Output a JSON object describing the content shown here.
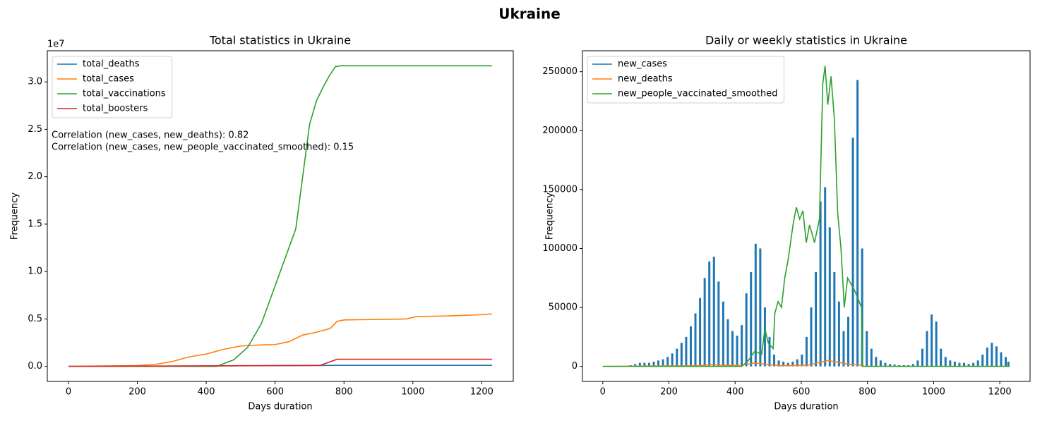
{
  "figure_title": "Ukraine",
  "chart_data": [
    {
      "type": "line",
      "title": "Total statistics in Ukraine",
      "xlabel": "Days duration",
      "ylabel": "Frequency",
      "y_offset_label": "1e7",
      "legend": "upper left",
      "annotations": [
        "Correlation (new_cases, new_deaths): 0.82",
        "Correlation (new_cases, new_people_vaccinated_smoothed): 0.15"
      ],
      "xlim": [
        -61.5,
        1291.5
      ],
      "xticks": [
        0,
        200,
        400,
        600,
        800,
        1000,
        1200
      ],
      "ylim": [
        -1585000,
        33285000
      ],
      "yticks": [
        {
          "value": 0,
          "label": "0.0"
        },
        {
          "value": 5000000,
          "label": "0.5"
        },
        {
          "value": 10000000,
          "label": "1.0"
        },
        {
          "value": 15000000,
          "label": "1.5"
        },
        {
          "value": 20000000,
          "label": "2.0"
        },
        {
          "value": 25000000,
          "label": "2.5"
        },
        {
          "value": 30000000,
          "label": "3.0"
        }
      ],
      "series": [
        {
          "name": "total_deaths",
          "color": "#1f77b4",
          "x": [
            0,
            300,
            500,
            700,
            780,
            1230
          ],
          "values": [
            0,
            20000,
            60000,
            90000,
            110000,
            110000
          ]
        },
        {
          "name": "total_cases",
          "color": "#ff7f0e",
          "x": [
            0,
            200,
            250,
            300,
            350,
            400,
            450,
            500,
            550,
            600,
            640,
            680,
            720,
            760,
            780,
            800,
            900,
            980,
            1010,
            1100,
            1200,
            1230
          ],
          "values": [
            0,
            80000,
            200000,
            500000,
            1000000,
            1300000,
            1800000,
            2150000,
            2250000,
            2300000,
            2600000,
            3300000,
            3600000,
            4000000,
            4750000,
            4900000,
            4950000,
            5000000,
            5250000,
            5320000,
            5450000,
            5530000
          ]
        },
        {
          "name": "total_vaccinations",
          "color": "#2ca02c",
          "x": [
            0,
            430,
            480,
            520,
            560,
            600,
            640,
            660,
            680,
            700,
            720,
            740,
            760,
            775,
            790,
            1230
          ],
          "values": [
            0,
            0,
            700000,
            2000000,
            4500000,
            8500000,
            12500000,
            14500000,
            20000000,
            25500000,
            28000000,
            29500000,
            30800000,
            31600000,
            31700000,
            31700000
          ]
        },
        {
          "name": "total_boosters",
          "color": "#d62728",
          "x": [
            0,
            730,
            780,
            1230
          ],
          "values": [
            0,
            100000,
            750000,
            750000
          ]
        }
      ]
    },
    {
      "type": "line",
      "title": "Daily or weekly statistics in Ukraine",
      "xlabel": "Days duration",
      "ylabel": "Frequency",
      "legend": "upper left",
      "xlim": [
        -61.5,
        1291.5
      ],
      "xticks": [
        0,
        200,
        400,
        600,
        800,
        1000,
        1200
      ],
      "ylim": [
        -12750,
        267750
      ],
      "yticks": [
        0,
        50000,
        100000,
        150000,
        200000,
        250000
      ],
      "series": [
        {
          "name": "new_cases",
          "color": "#1f77b4",
          "style": "bar",
          "x": [
            84,
            98,
            112,
            126,
            140,
            154,
            168,
            182,
            196,
            210,
            224,
            238,
            252,
            266,
            280,
            294,
            308,
            322,
            336,
            350,
            364,
            378,
            392,
            406,
            420,
            434,
            448,
            462,
            476,
            490,
            504,
            518,
            532,
            546,
            560,
            574,
            588,
            602,
            616,
            630,
            644,
            658,
            672,
            686,
            700,
            714,
            728,
            742,
            756,
            770,
            784,
            798,
            812,
            826,
            840,
            854,
            868,
            882,
            896,
            910,
            924,
            938,
            952,
            966,
            980,
            994,
            1008,
            1022,
            1036,
            1050,
            1064,
            1078,
            1092,
            1106,
            1120,
            1134,
            1148,
            1162,
            1176,
            1190,
            1204,
            1218,
            1226
          ],
          "values": [
            1000,
            2000,
            3000,
            3000,
            3000,
            4000,
            5000,
            6000,
            8000,
            11000,
            15000,
            20000,
            25000,
            34000,
            45000,
            58000,
            75000,
            89000,
            93000,
            72000,
            55000,
            40000,
            30000,
            26000,
            35000,
            62000,
            80000,
            104000,
            100000,
            50000,
            25000,
            10000,
            5000,
            4000,
            3000,
            4000,
            6000,
            10000,
            25000,
            50000,
            80000,
            140000,
            152000,
            118000,
            80000,
            55000,
            30000,
            42000,
            194000,
            243000,
            100000,
            30000,
            15000,
            8000,
            5000,
            3000,
            2000,
            1500,
            1000,
            1000,
            1000,
            2000,
            5000,
            15000,
            30000,
            44000,
            38000,
            15000,
            8000,
            5000,
            4000,
            3000,
            3000,
            2000,
            3000,
            5000,
            10000,
            16000,
            20000,
            17000,
            12000,
            8000,
            4000
          ]
        },
        {
          "name": "new_deaths",
          "color": "#ff7f0e",
          "x": [
            0,
            280,
            330,
            380,
            420,
            460,
            500,
            540,
            620,
            680,
            740,
            780,
            790,
            1230
          ],
          "values": [
            0,
            500,
            1500,
            800,
            1000,
            3000,
            1500,
            500,
            1000,
            5000,
            2000,
            1000,
            0,
            0
          ]
        },
        {
          "name": "new_people_vaccinated_smoothed",
          "color": "#2ca02c",
          "x": [
            0,
            420,
            440,
            460,
            480,
            490,
            500,
            515,
            520,
            530,
            540,
            550,
            560,
            575,
            585,
            595,
            605,
            615,
            625,
            640,
            655,
            665,
            672,
            680,
            690,
            700,
            710,
            720,
            730,
            740,
            750,
            760,
            775,
            782,
            785,
            1230
          ],
          "values": [
            0,
            0,
            5000,
            13000,
            10000,
            32000,
            20000,
            15000,
            45000,
            55000,
            50000,
            75000,
            90000,
            120000,
            135000,
            125000,
            132000,
            105000,
            120000,
            105000,
            125000,
            240000,
            255000,
            222000,
            246000,
            210000,
            130000,
            100000,
            50000,
            75000,
            70000,
            65000,
            55000,
            50000,
            0,
            0
          ]
        }
      ]
    }
  ]
}
